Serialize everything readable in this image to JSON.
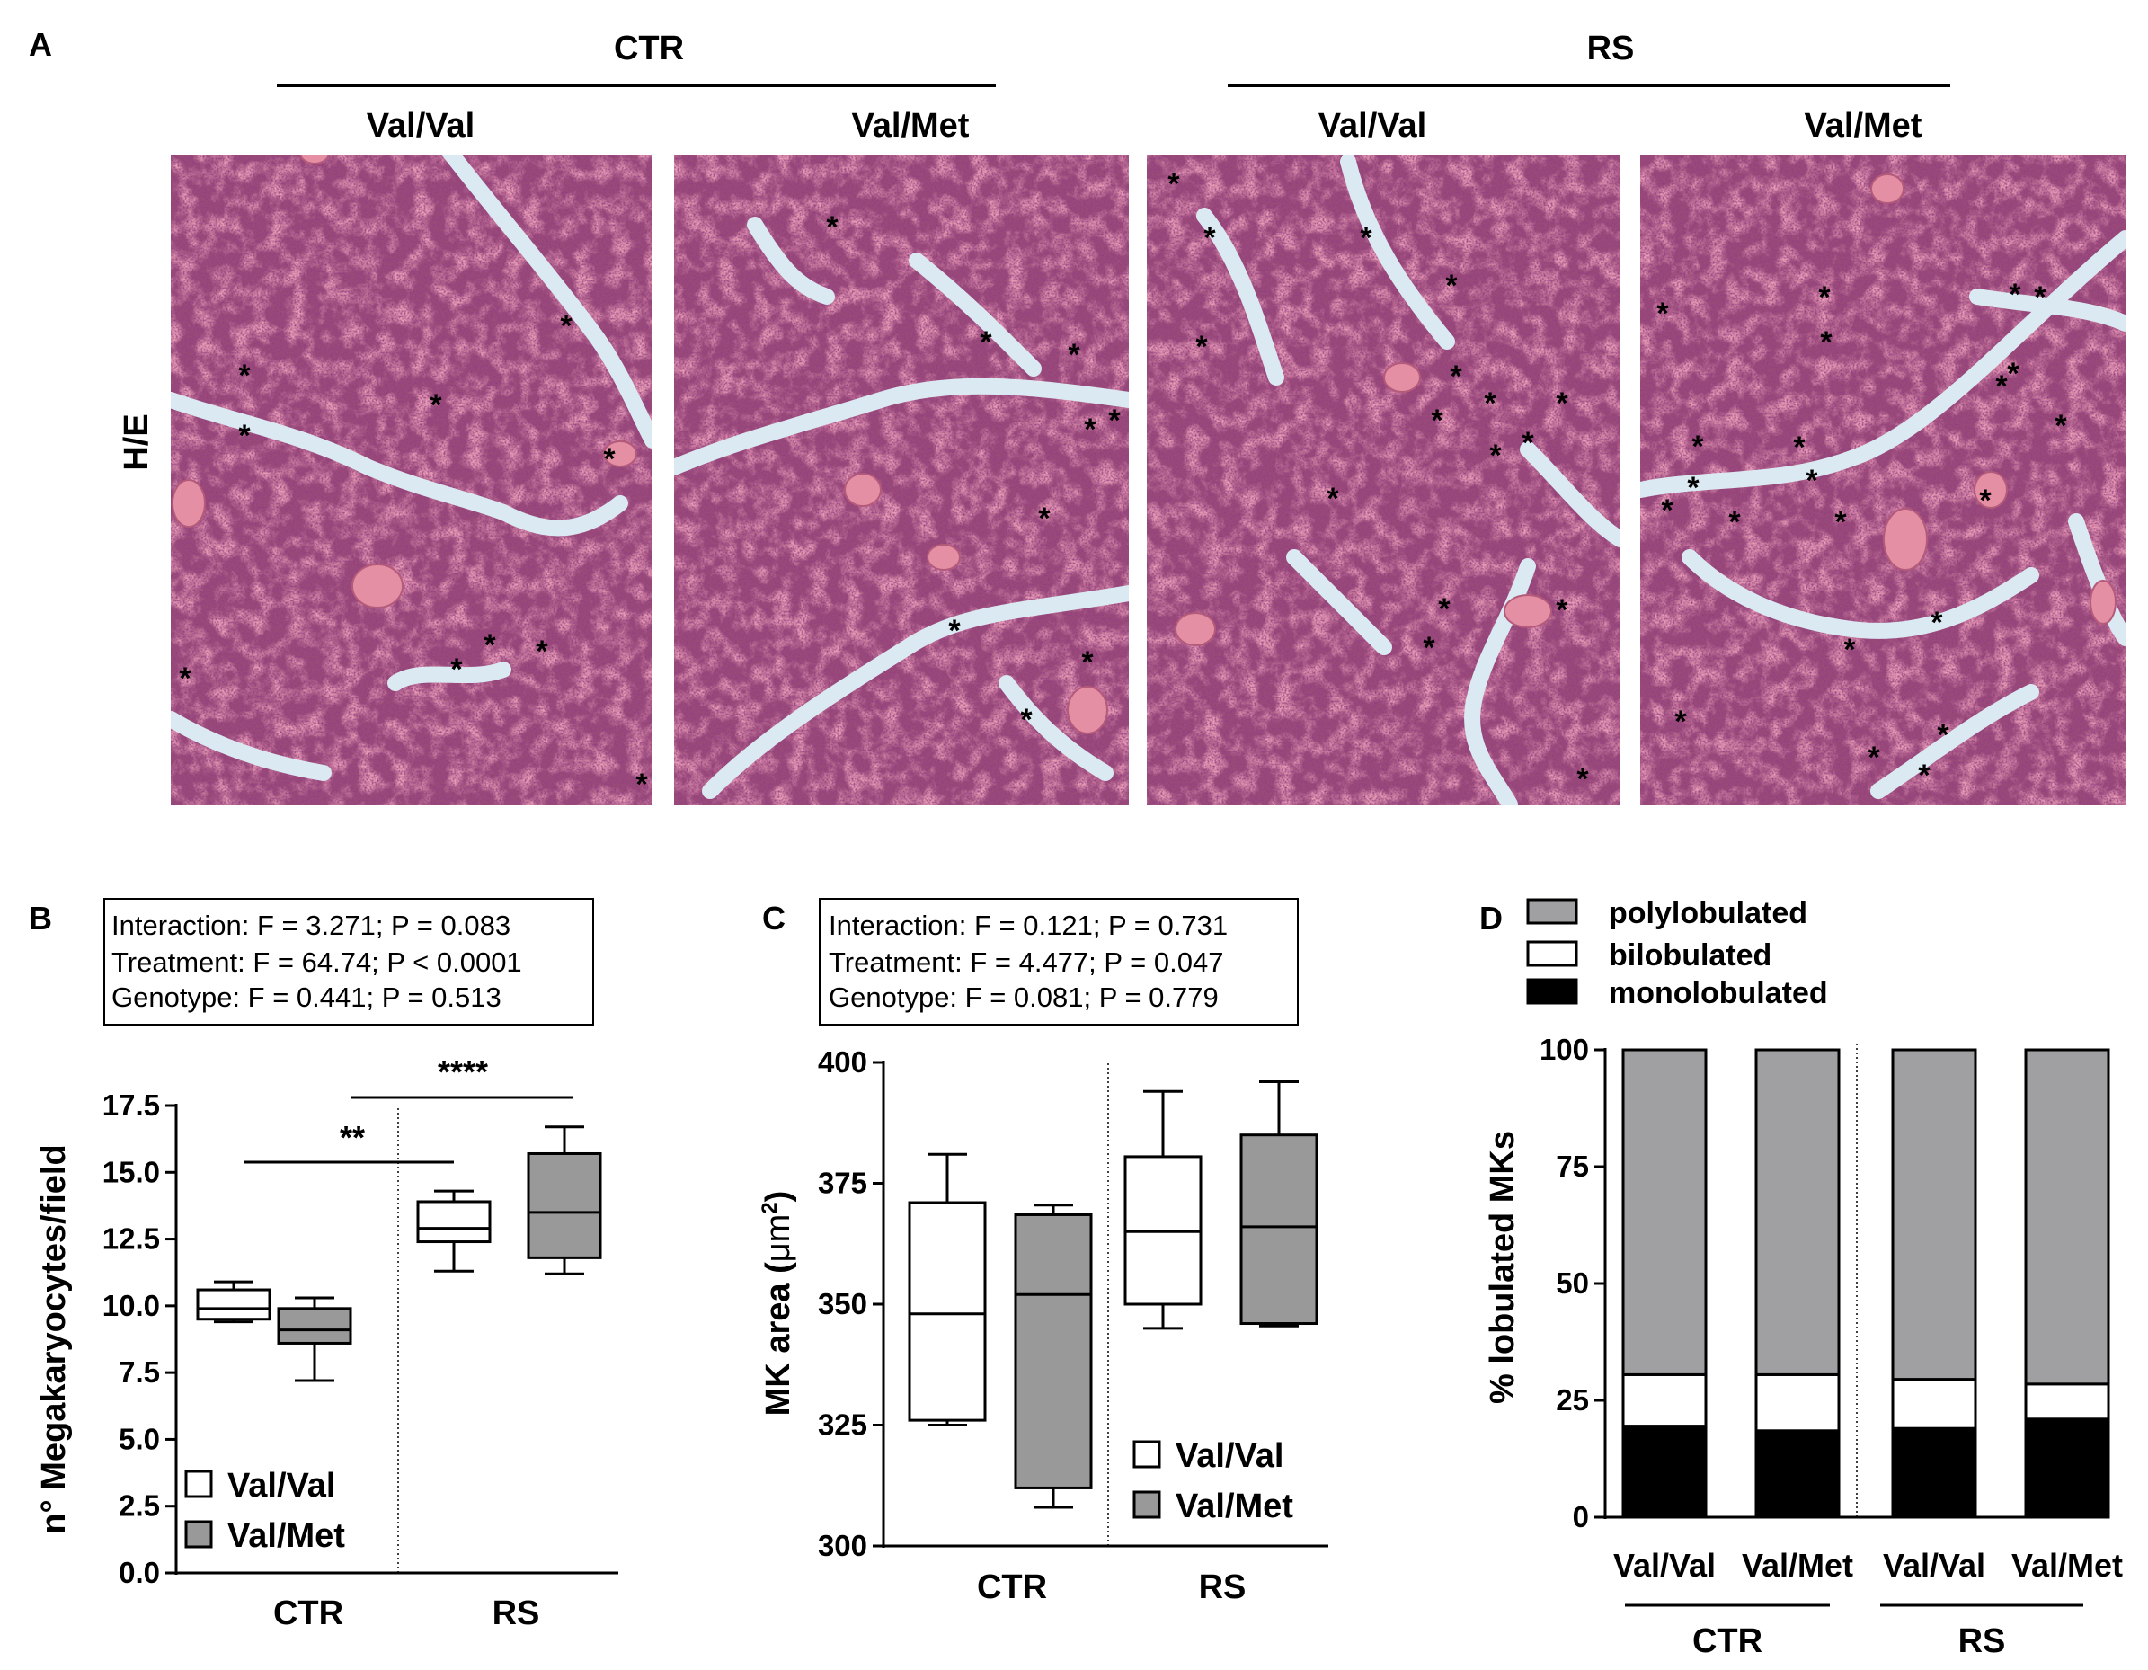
{
  "panel_a": {
    "letter": "A",
    "groups": [
      "CTR",
      "RS"
    ],
    "columns": [
      "Val/Val",
      "Val/Met",
      "Val/Val",
      "Val/Met"
    ],
    "stain_label": "H/E",
    "marker": "*"
  },
  "chart_data": [
    {
      "panel": "B",
      "type": "box",
      "stats": [
        "Interaction: F = 3.271; P = 0.083",
        "Treatment: F = 64.74; P < 0.0001",
        "Genotype: F = 0.441; P = 0.513"
      ],
      "ylabel": "n° Megakaryocytes/field",
      "ylim": [
        0,
        17.5
      ],
      "yticks": [
        "0.0",
        "2.5",
        "5.0",
        "7.5",
        "10.0",
        "12.5",
        "15.0",
        "17.5"
      ],
      "groups": [
        "CTR",
        "RS"
      ],
      "legend": [
        "Val/Val",
        "Val/Met"
      ],
      "boxes": [
        {
          "group": "CTR",
          "series": "Val/Val",
          "min": 9.4,
          "q1": 9.5,
          "median": 9.9,
          "q3": 10.6,
          "max": 10.9
        },
        {
          "group": "CTR",
          "series": "Val/Met",
          "min": 7.2,
          "q1": 8.6,
          "median": 9.1,
          "q3": 9.9,
          "max": 10.3
        },
        {
          "group": "RS",
          "series": "Val/Val",
          "min": 11.3,
          "q1": 12.4,
          "median": 12.9,
          "q3": 13.9,
          "max": 14.3
        },
        {
          "group": "RS",
          "series": "Val/Met",
          "min": 11.2,
          "q1": 11.8,
          "median": 13.5,
          "q3": 15.7,
          "max": 16.7
        }
      ],
      "significance": [
        "**",
        "****"
      ]
    },
    {
      "panel": "C",
      "type": "box",
      "stats": [
        "Interaction: F = 0.121; P = 0.731",
        "Treatment: F = 4.477; P = 0.047",
        "Genotype: F = 0.081; P = 0.779"
      ],
      "ylabel_main": "MK area (",
      "ylabel_unit": "μm",
      "ylabel_sup": "2",
      "ylabel_end": ")",
      "ylim": [
        300,
        400
      ],
      "yticks": [
        "300",
        "325",
        "350",
        "375",
        "400"
      ],
      "groups": [
        "CTR",
        "RS"
      ],
      "legend": [
        "Val/Val",
        "Val/Met"
      ],
      "boxes": [
        {
          "group": "CTR",
          "series": "Val/Val",
          "min": 325,
          "q1": 326,
          "median": 348,
          "q3": 371,
          "max": 381
        },
        {
          "group": "CTR",
          "series": "Val/Met",
          "min": 308,
          "q1": 312,
          "median": 352,
          "q3": 368.5,
          "max": 370.5
        },
        {
          "group": "RS",
          "series": "Val/Val",
          "min": 345,
          "q1": 350,
          "median": 365,
          "q3": 380.5,
          "max": 394
        },
        {
          "group": "RS",
          "series": "Val/Met",
          "min": 345.5,
          "q1": 346,
          "median": 366,
          "q3": 385,
          "max": 396
        }
      ]
    },
    {
      "panel": "D",
      "type": "bar",
      "stacked": true,
      "ylabel": "% lobulated MKs",
      "ylim": [
        0,
        100
      ],
      "yticks": [
        "0",
        "25",
        "50",
        "75",
        "100"
      ],
      "categories": [
        "Val/Val",
        "Val/Met",
        "Val/Val",
        "Val/Met"
      ],
      "groups": [
        "CTR",
        "RS"
      ],
      "series": [
        {
          "name": "monolobulated",
          "values": [
            19.5,
            18.5,
            19,
            21
          ]
        },
        {
          "name": "bilobulated",
          "values": [
            11,
            12,
            10.5,
            7.5
          ]
        },
        {
          "name": "polylobulated",
          "values": [
            69.5,
            69.5,
            70.5,
            71.5
          ]
        }
      ],
      "legend_order": [
        "polylobulated",
        "bilobulated",
        "monolobulated"
      ]
    }
  ],
  "colors": {
    "white_box": "#ffffff",
    "gray_box": "#999999",
    "bar_gray": "#a0a0a2",
    "bar_black": "#000000",
    "tissue_base": "#9a4a78",
    "tissue_dark": "#6a2a5a",
    "tissue_red": "#c04a6e",
    "gap": "#dbeaf2"
  }
}
